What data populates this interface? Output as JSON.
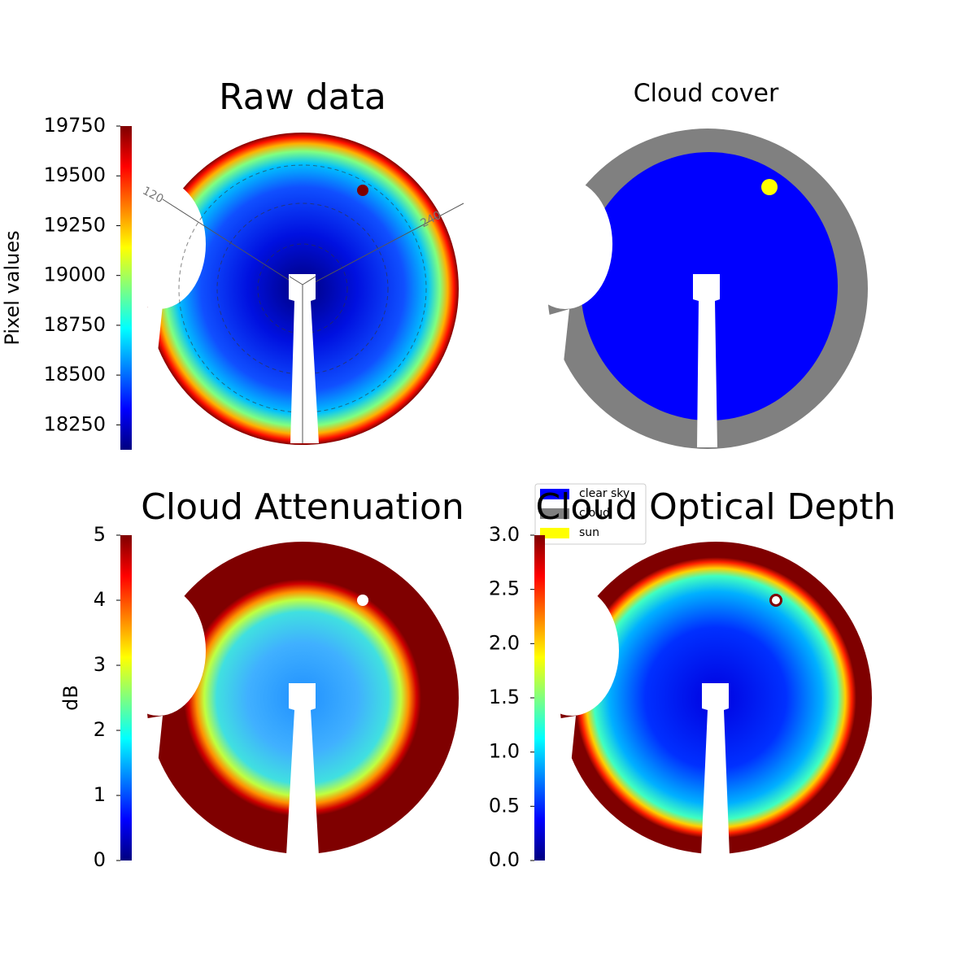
{
  "chart_data": [
    {
      "type": "image",
      "title": "Raw data",
      "colorbar_label": "Pixel values",
      "colormap": "jet",
      "ylim": [
        18125,
        19750
      ],
      "yticks": [
        18250,
        18500,
        18750,
        19000,
        19250,
        19500,
        19750
      ],
      "azimuth_labels": [
        "120",
        "240"
      ]
    },
    {
      "type": "categorical",
      "title": "Cloud cover",
      "series": [
        {
          "name": "clear sky",
          "color": "#0000ff"
        },
        {
          "name": "cloud",
          "color": "#808080"
        },
        {
          "name": "sun",
          "color": "#ffff00"
        }
      ]
    },
    {
      "type": "image",
      "title": "Cloud Attenuation",
      "colorbar_label": "dB",
      "colormap": "jet",
      "ylim": [
        0,
        5
      ],
      "yticks": [
        0,
        1,
        2,
        3,
        4,
        5
      ]
    },
    {
      "type": "image",
      "title": "Cloud Optical Depth",
      "colormap": "jet",
      "ylim": [
        0,
        3
      ],
      "yticks": [
        {
          "value": 0,
          "label": "0.0"
        },
        {
          "value": 0.5,
          "label": "0.5"
        },
        {
          "value": 1,
          "label": "1.0"
        },
        {
          "value": 1.5,
          "label": "1.5"
        },
        {
          "value": 2,
          "label": "2.0"
        },
        {
          "value": 2.5,
          "label": "2.5"
        },
        {
          "value": 3,
          "label": "3.0"
        }
      ]
    }
  ]
}
